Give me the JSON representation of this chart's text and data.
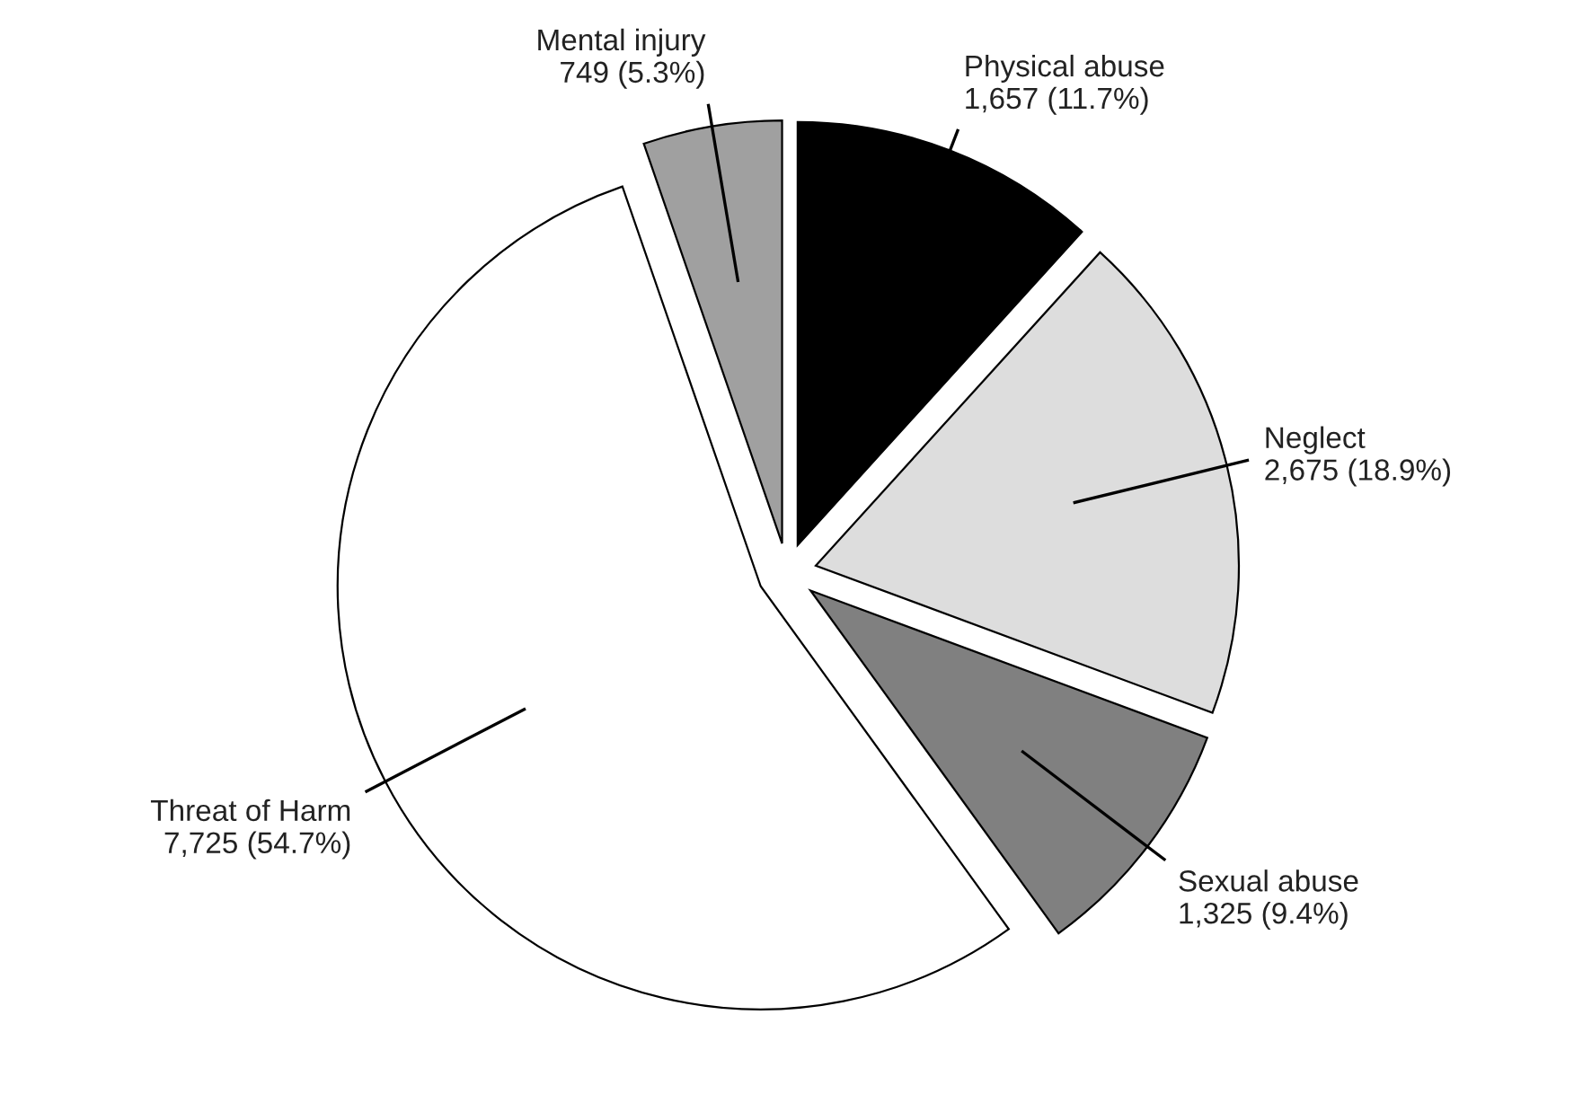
{
  "chart_data": {
    "type": "pie",
    "categories": [
      "Physical abuse",
      "Neglect",
      "Sexual abuse",
      "Threat of Harm",
      "Mental injury"
    ],
    "values": [
      1657,
      2675,
      1325,
      7725,
      749
    ],
    "value_labels": [
      "1,657 (11.7%)",
      "2,675 (18.9%)",
      "1,325 (9.4%)",
      "7,725 (54.7%)",
      "749 (5.3%)"
    ],
    "colors": [
      "#000000",
      "#dddddd",
      "#808080",
      "#ffffff",
      "#a0a0a0"
    ]
  }
}
